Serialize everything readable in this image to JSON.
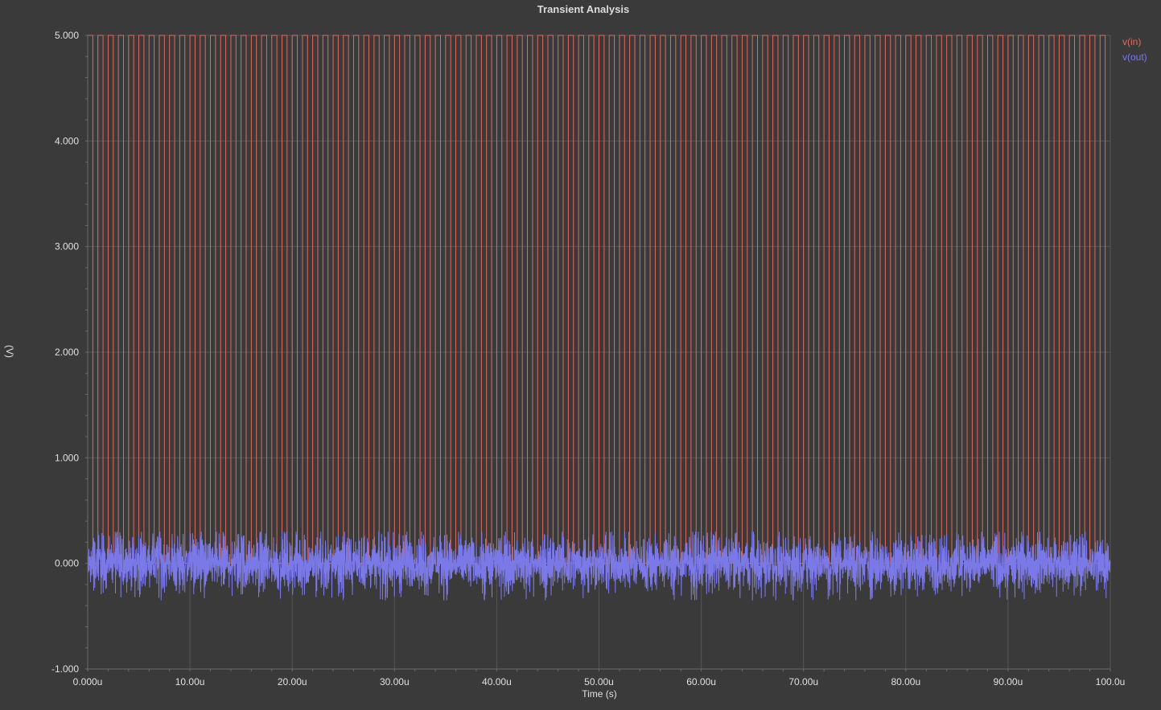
{
  "colors": {
    "background": "#3a3a3a",
    "grid": "#555555",
    "axis": "#6a6a6a",
    "text": "#e0e0e0",
    "v_in": "#e06a5f",
    "v_out": "#7b78e8"
  },
  "chart_data": {
    "type": "line",
    "title": "Transient Analysis",
    "xlabel": "Time (s)",
    "ylabel": "(V)",
    "xlim": [
      0,
      100
    ],
    "ylim": [
      -1,
      5
    ],
    "x_unit": "u",
    "xtick_values": [
      0,
      10,
      20,
      30,
      40,
      50,
      60,
      70,
      80,
      90,
      100
    ],
    "xtick_labels": [
      "0.000u",
      "10.00u",
      "20.00u",
      "30.00u",
      "40.00u",
      "50.00u",
      "60.00u",
      "70.00u",
      "80.00u",
      "90.00u",
      "100.0u"
    ],
    "ytick_values": [
      5,
      4,
      3,
      2,
      1,
      0,
      -1
    ],
    "ytick_labels": [
      "5.000",
      "4.000",
      "3.000",
      "2.000",
      "1.000",
      "0.000",
      "-1.000"
    ],
    "grid": true,
    "legend_position": "top-right",
    "series": [
      {
        "name": "v(in)",
        "color": "#e06a5f",
        "kind": "square-wave",
        "low": 0,
        "high": 5,
        "period": 1,
        "duty": 0.5
      },
      {
        "name": "v(out)",
        "color": "#7b78e8",
        "kind": "noise",
        "mean": 0,
        "min": -0.35,
        "max": 0.3
      }
    ]
  }
}
